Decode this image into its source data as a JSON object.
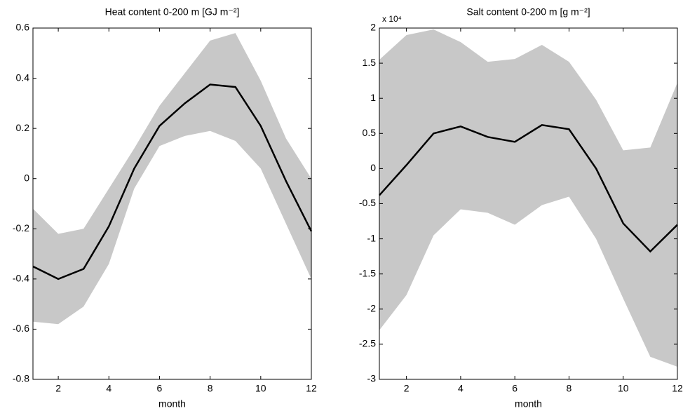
{
  "chart_data": [
    {
      "type": "line",
      "title": "Heat content 0-200 m [GJ m⁻²]",
      "x_label": "month",
      "x": [
        1,
        2,
        3,
        4,
        5,
        6,
        7,
        8,
        9,
        10,
        11,
        12
      ],
      "values": [
        -0.35,
        -0.4,
        -0.36,
        -0.19,
        0.04,
        0.21,
        0.3,
        0.375,
        0.365,
        0.21,
        -0.01,
        -0.21
      ],
      "color": "#000000",
      "band_upper": [
        -0.12,
        -0.22,
        -0.2,
        -0.04,
        0.12,
        0.29,
        0.42,
        0.55,
        0.58,
        0.39,
        0.16,
        0.0
      ],
      "band_lower": [
        -0.57,
        -0.58,
        -0.51,
        -0.34,
        -0.04,
        0.13,
        0.17,
        0.19,
        0.15,
        0.04,
        -0.18,
        -0.4
      ],
      "band_color": "#c8c8c8",
      "xlim": [
        1,
        12
      ],
      "xticks": [
        2,
        4,
        6,
        8,
        10,
        12
      ],
      "ylim": [
        -0.8,
        0.6
      ],
      "yticks": [
        0.6,
        0.4,
        0.2,
        0,
        -0.2,
        -0.4,
        -0.6,
        -0.8
      ]
    },
    {
      "type": "line",
      "title": "Salt content 0-200 m [g m⁻²]",
      "x_label": "month",
      "y_scale_label": "x 10⁴",
      "x": [
        1,
        2,
        3,
        4,
        5,
        6,
        7,
        8,
        9,
        10,
        11,
        12
      ],
      "values": [
        -0.38,
        0.05,
        0.5,
        0.6,
        0.45,
        0.38,
        0.62,
        0.56,
        0.0,
        -0.78,
        -1.18,
        -0.8
      ],
      "color": "#000000",
      "band_upper": [
        1.55,
        1.9,
        1.98,
        1.8,
        1.52,
        1.56,
        1.76,
        1.52,
        0.98,
        0.26,
        0.3,
        1.22
      ],
      "band_lower": [
        -2.3,
        -1.8,
        -0.95,
        -0.58,
        -0.63,
        -0.8,
        -0.52,
        -0.4,
        -1.0,
        -1.85,
        -2.68,
        -2.82
      ],
      "band_color": "#c8c8c8",
      "xlim": [
        1,
        12
      ],
      "xticks": [
        2,
        4,
        6,
        8,
        10,
        12
      ],
      "ylim": [
        -3,
        2
      ],
      "yticks": [
        2,
        1.5,
        1,
        0.5,
        0,
        -0.5,
        -1,
        -1.5,
        -2,
        -2.5,
        -3
      ]
    }
  ]
}
